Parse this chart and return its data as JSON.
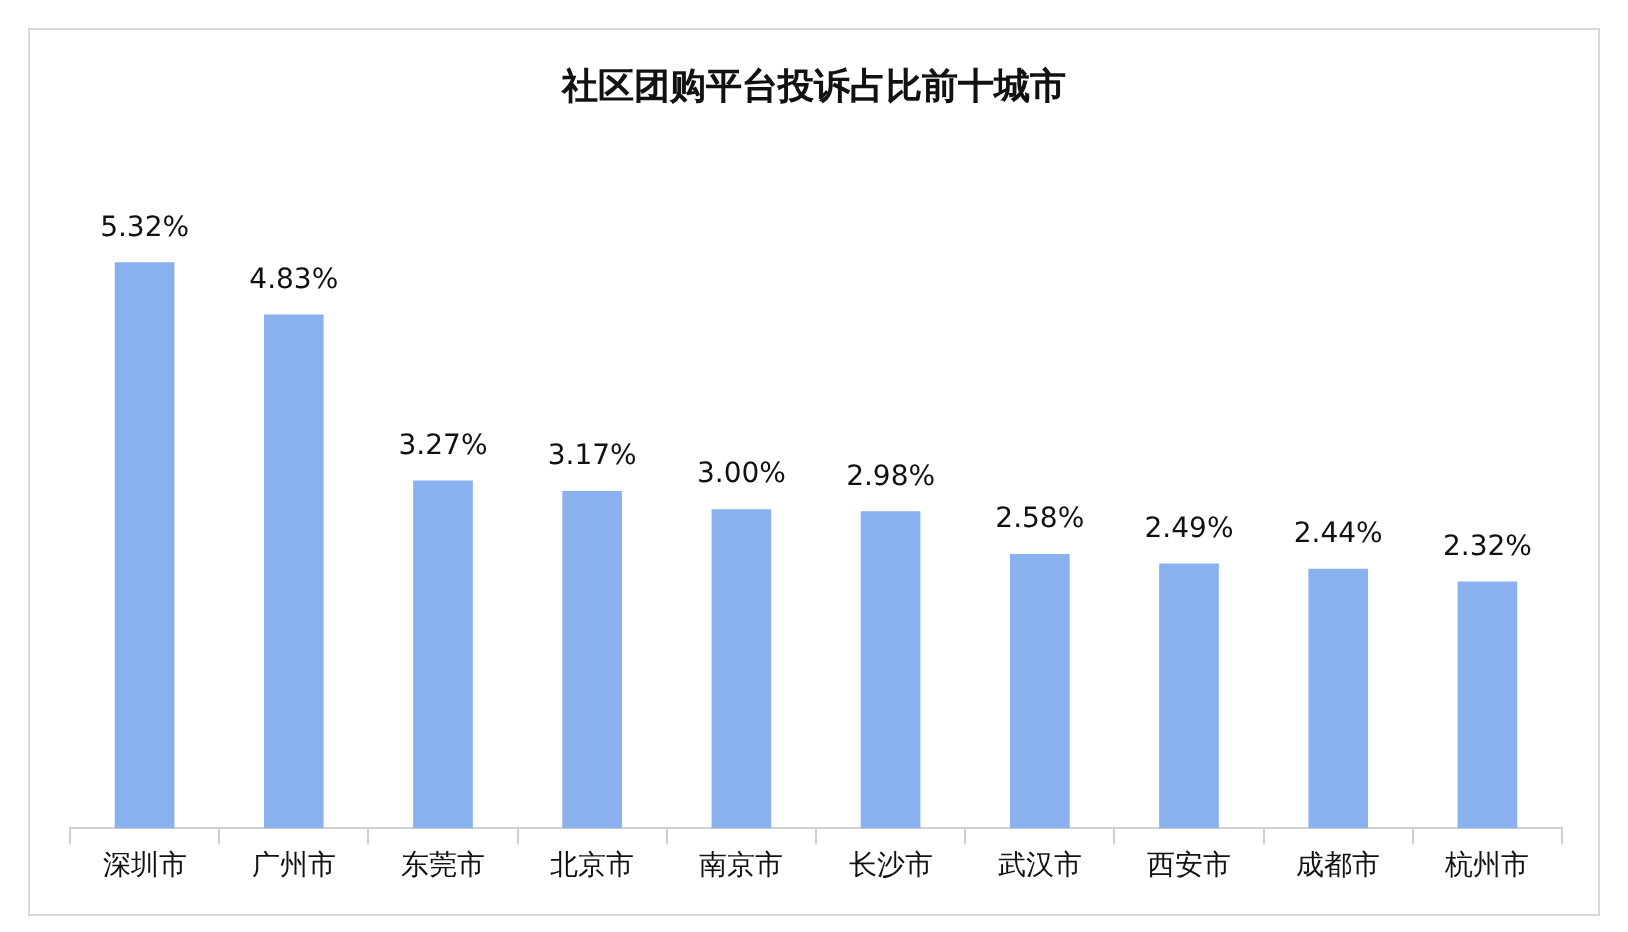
{
  "chart_data": {
    "type": "bar",
    "title": "社区团购平台投诉占比前十城市",
    "categories": [
      "深圳市",
      "广州市",
      "东莞市",
      "北京市",
      "南京市",
      "长沙市",
      "武汉市",
      "西安市",
      "成都市",
      "杭州市"
    ],
    "values": [
      5.32,
      4.83,
      3.27,
      3.17,
      3.0,
      2.98,
      2.58,
      2.49,
      2.44,
      2.32
    ],
    "value_labels": [
      "5.32%",
      "4.83%",
      "3.27%",
      "3.17%",
      "3.00%",
      "2.98%",
      "2.58%",
      "2.49%",
      "2.44%",
      "2.32%"
    ],
    "color": "#89b1ee",
    "grid": false,
    "legend": false
  }
}
